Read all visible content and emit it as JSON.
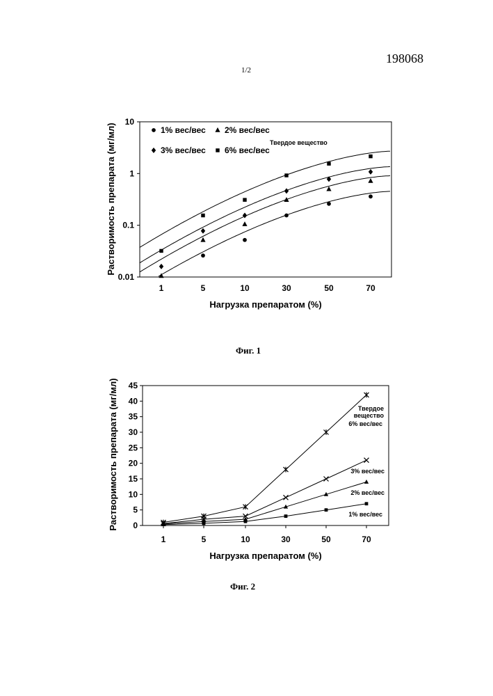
{
  "page": {
    "doc_number": "198068",
    "page_number": "1/2",
    "fig1_caption": "Фиг. 1",
    "fig2_caption": "Фиг. 2"
  },
  "chart_data": [
    {
      "type": "scatter",
      "yscale": "log",
      "xscale": "categorical",
      "categories": [
        "1",
        "5",
        "10",
        "30",
        "50",
        "70"
      ],
      "ylim": [
        0.01,
        10
      ],
      "yticks": [
        "0.01",
        "0.1",
        "1",
        "10"
      ],
      "xlabel": "Нагрузка препаратом (%)",
      "ylabel": "Растворимость препарата (мг/мл)",
      "annotation": "Твердое вещество",
      "legend_position": "top-left",
      "series": [
        {
          "name": "1% вес/вес",
          "marker": "circle",
          "values": [
            null,
            0.026,
            0.052,
            0.155,
            0.26,
            0.36
          ]
        },
        {
          "name": "2% вес/вес",
          "marker": "triangle",
          "values": [
            0.0105,
            0.052,
            0.105,
            0.31,
            0.5,
            0.72
          ]
        },
        {
          "name": "3% вес/вес",
          "marker": "diamond",
          "values": [
            0.016,
            0.078,
            0.155,
            0.46,
            0.78,
            1.08
          ]
        },
        {
          "name": "6% вес/вес",
          "marker": "square",
          "values": [
            0.032,
            0.155,
            0.31,
            0.92,
            1.55,
            2.15
          ]
        }
      ]
    },
    {
      "type": "line",
      "xscale": "categorical",
      "categories": [
        "1",
        "5",
        "10",
        "30",
        "50",
        "70"
      ],
      "ylim": [
        0,
        45
      ],
      "yticks": [
        "0",
        "5",
        "10",
        "15",
        "20",
        "25",
        "30",
        "35",
        "40",
        "45"
      ],
      "xlabel": "Нагрузка препаратом (%)",
      "ylabel": "Растворимость препарата (мг/мл)",
      "annotation": "Твердое вещество",
      "series": [
        {
          "name": "1% вес/вес",
          "marker": "square",
          "values": [
            0.3,
            0.7,
            1.3,
            3.0,
            5.0,
            7.0
          ]
        },
        {
          "name": "2% вес/вес",
          "marker": "triangle",
          "values": [
            0.5,
            1.3,
            2.0,
            6.0,
            10.0,
            14.0
          ]
        },
        {
          "name": "3% вес/вес",
          "marker": "x",
          "values": [
            0.6,
            2.0,
            3.0,
            9.0,
            15.0,
            21.0
          ]
        },
        {
          "name": "6% вес/вес",
          "marker": "star",
          "values": [
            1.0,
            3.0,
            6.0,
            18.0,
            30.0,
            42.0
          ]
        }
      ]
    }
  ]
}
